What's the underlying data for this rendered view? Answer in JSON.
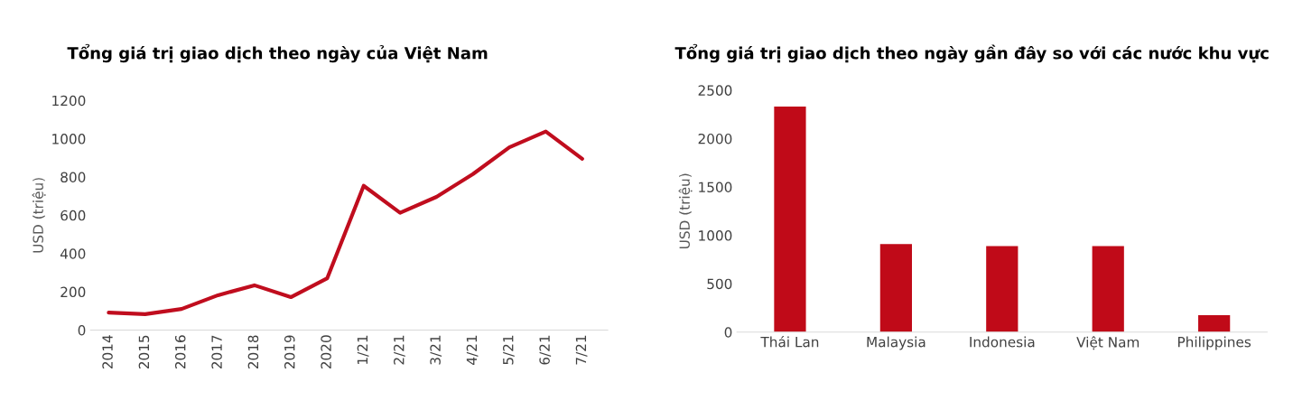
{
  "chart_data": [
    {
      "type": "line",
      "title": "Tổng giá trị giao dịch theo ngày của Việt Nam",
      "ylabel": "USD (triệu)",
      "categories": [
        "2014",
        "2015",
        "2016",
        "2017",
        "2018",
        "2019",
        "2020",
        "1/21",
        "2/21",
        "3/21",
        "4/21",
        "5/21",
        "6/21",
        "7/21"
      ],
      "series": [
        {
          "color": "#c00d1e",
          "values": [
            91,
            83,
            110,
            182,
            234,
            172,
            271,
            754,
            613,
            696,
            815,
            955,
            1038,
            895
          ]
        }
      ],
      "ylim": [
        0,
        1200
      ],
      "yticks": [
        0,
        200,
        400,
        600,
        800,
        1000,
        1200
      ],
      "grid": false,
      "marker": "none",
      "line_style": "solid"
    },
    {
      "type": "bar",
      "title": "Tổng giá trị giao dịch theo ngày gần đây so với các nước khu vực",
      "ylabel": "USD (triệu)",
      "categories": [
        "Thái Lan",
        "Malaysia",
        "Indonesia",
        "Việt Nam",
        "Philippines"
      ],
      "series": [
        {
          "color": "#c00a18",
          "values": [
            2330,
            910,
            890,
            890,
            175
          ]
        }
      ],
      "ylim": [
        0,
        2500
      ],
      "yticks": [
        0,
        500,
        1000,
        1500,
        2000,
        2500
      ],
      "grid": false
    }
  ]
}
